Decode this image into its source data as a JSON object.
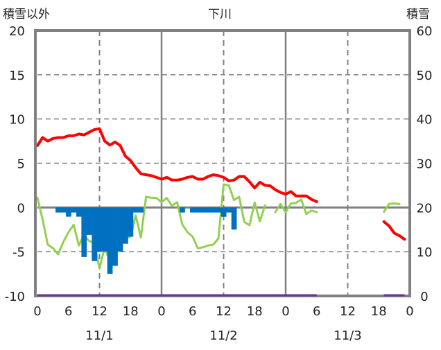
{
  "chart_data": {
    "type": "line",
    "title": "下川",
    "left_axis_label": "積雪以外",
    "right_axis_label": "積雪",
    "left_ylim": [
      -10,
      20
    ],
    "left_ticks": [
      "-10",
      "-5",
      "0",
      "5",
      "10",
      "15",
      "20"
    ],
    "right_ylim": [
      0,
      60
    ],
    "right_ticks": [
      "0",
      "10",
      "20",
      "30",
      "40",
      "50",
      "60"
    ],
    "xlim_hours": [
      0,
      72
    ],
    "x_tick_labels": [
      "0",
      "6",
      "12",
      "18",
      "0",
      "6",
      "12",
      "18",
      "0",
      "6",
      "12",
      "18",
      "0"
    ],
    "date_labels": [
      "11/1",
      "11/2",
      "11/3"
    ],
    "grid": true,
    "series": [
      {
        "name": "temperature",
        "axis": "left",
        "color": "#ff0000",
        "kind": "line",
        "values": [
          7.0,
          7.9,
          7.5,
          7.8,
          7.9,
          7.9,
          8.1,
          8.1,
          8.3,
          8.2,
          8.5,
          8.8,
          8.9,
          7.5,
          7.05,
          7.4,
          7.0,
          5.8,
          5.3,
          4.5,
          3.8,
          3.7,
          3.6,
          3.4,
          3.2,
          3.4,
          3.1,
          3.1,
          3.2,
          3.4,
          3.5,
          3.2,
          3.2,
          3.5,
          3.7,
          3.6,
          3.4,
          3.0,
          3.1,
          3.5,
          3.5,
          2.9,
          2.2,
          2.85,
          2.5,
          2.45,
          2.0,
          1.7,
          1.5,
          1.8,
          1.3,
          1.3,
          1.3,
          0.9,
          0.65,
          null,
          null,
          null,
          null,
          null,
          null,
          null,
          null,
          null,
          null,
          null,
          null,
          -1.6,
          -2.1,
          -2.9,
          -3.2,
          -3.6
        ]
      },
      {
        "name": "green-series",
        "axis": "left",
        "color": "#92d050",
        "kind": "line",
        "values": [
          1.1,
          -1.4,
          -4.2,
          -4.6,
          -5.3,
          -3.9,
          -2.8,
          -1.96,
          -4.3,
          -3.1,
          -3.8,
          -4.0,
          -6.9,
          -4.5,
          -6.1,
          -4.5,
          -3.8,
          -3.5,
          -3.3,
          -0.9,
          -3.4,
          1.2,
          1.1,
          1.07,
          0.6,
          1.07,
          0.2,
          0.6,
          -1.9,
          -2.8,
          -3.3,
          -4.6,
          -4.5,
          -4.3,
          -4.2,
          -3.5,
          2.6,
          2.5,
          0.84,
          1.2,
          -1.65,
          -2.0,
          0.57,
          -1.57,
          0.24,
          null,
          -0.55,
          0.4,
          -0.55,
          0.45,
          0.52,
          0.89,
          -0.73,
          -0.34,
          -0.52,
          null,
          null,
          null,
          null,
          null,
          null,
          null,
          null,
          null,
          null,
          null,
          null,
          -0.5,
          0.4,
          0.45,
          0.4
        ]
      },
      {
        "name": "blue-bars",
        "axis": "left",
        "color": "#0070c0",
        "kind": "bar",
        "values": [
          0,
          0,
          0,
          0,
          -0.57,
          -0.57,
          -1.04,
          -0.57,
          -1.04,
          -5.6,
          -3.1,
          -6.06,
          -5.0,
          -5.0,
          -7.5,
          -6.6,
          -5.0,
          -4.1,
          -3.3,
          -0.57,
          -0.57,
          0,
          0,
          0,
          0,
          0,
          0,
          0,
          -0.57,
          0,
          -0.57,
          -0.57,
          -0.57,
          -0.57,
          -0.57,
          -0.57,
          -1.05,
          -0.57,
          -2.5,
          0,
          0,
          0,
          0,
          0,
          0,
          0,
          0,
          0,
          0,
          0,
          0,
          0,
          0,
          0,
          0
        ]
      },
      {
        "name": "snow-depth",
        "axis": "right",
        "color": "#7030a0",
        "kind": "line",
        "values": [
          0,
          0,
          0,
          0,
          0,
          0,
          0,
          0,
          0,
          0,
          0,
          0,
          0,
          0,
          0,
          0,
          0,
          0,
          0,
          0,
          0,
          0,
          0,
          0,
          0,
          0,
          0,
          0,
          0,
          0,
          0,
          0,
          0,
          0,
          0,
          0,
          0,
          0,
          0,
          0,
          0,
          0,
          0,
          0,
          0,
          0,
          0,
          0,
          0,
          0,
          0,
          0,
          0,
          0,
          0,
          null,
          null,
          null,
          null,
          null,
          null,
          null,
          null,
          null,
          null,
          null,
          null,
          0,
          0,
          0,
          0,
          0
        ]
      }
    ]
  }
}
